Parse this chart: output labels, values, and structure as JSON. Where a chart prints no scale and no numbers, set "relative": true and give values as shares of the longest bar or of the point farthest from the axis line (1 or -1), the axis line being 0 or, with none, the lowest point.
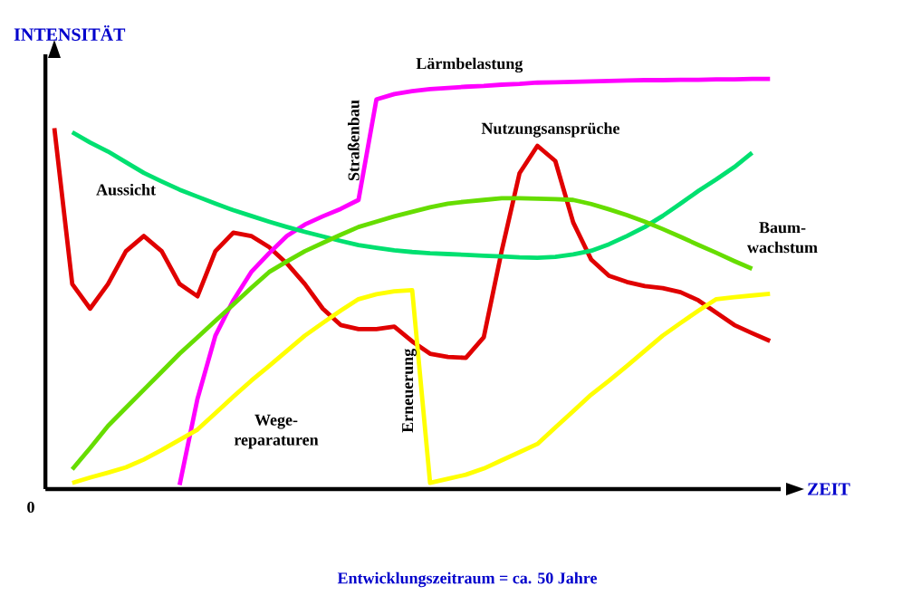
{
  "chart_data": {
    "type": "line",
    "relative": true,
    "xlabel": "ZEIT",
    "ylabel": "INTENSITÄT",
    "annotations": [
      "0",
      "Straßenbau",
      "Erneuerung",
      "Entwicklungszeitraum = ca. 50 Jahre"
    ],
    "categories": [
      null,
      null,
      null,
      null,
      null,
      null,
      null,
      null,
      null,
      null,
      null,
      null,
      null,
      null,
      null,
      null,
      null,
      null,
      null,
      null,
      null,
      null,
      null,
      null,
      null,
      null,
      null,
      null,
      null,
      null,
      null,
      null,
      null,
      null,
      null,
      null,
      null,
      null,
      null,
      null,
      null
    ],
    "series": [
      {
        "name": "Nutzungsansprüche",
        "color": "#e00000",
        "values": [
          0.88,
          0.5,
          0.44,
          0.5,
          0.58,
          0.617,
          0.58,
          0.5,
          0.47,
          0.58,
          0.625,
          0.617,
          0.59,
          0.55,
          0.5,
          0.44,
          0.4,
          0.39,
          0.39,
          0.396,
          0.36,
          0.33,
          0.322,
          0.32,
          0.37,
          0.58,
          0.77,
          0.837,
          0.8,
          0.65,
          0.56,
          0.52,
          0.505,
          0.495,
          0.49,
          0.48,
          0.46,
          0.43,
          0.4,
          0.38,
          0.361
        ]
      },
      {
        "name": "Lärmbelastung",
        "color": "#ff00ff",
        "values": [
          null,
          null,
          null,
          null,
          null,
          null,
          null,
          0.01,
          0.22,
          0.374,
          0.46,
          0.529,
          0.575,
          0.617,
          0.645,
          0.665,
          0.683,
          0.705,
          0.95,
          0.963,
          0.97,
          0.975,
          0.978,
          0.981,
          0.983,
          0.986,
          0.988,
          0.991,
          0.992,
          0.993,
          0.994,
          0.995,
          0.996,
          0.997,
          0.997,
          0.998,
          0.998,
          0.999,
          0.999,
          1,
          1
        ]
      },
      {
        "name": "Aussicht",
        "color": "#00e070",
        "values": [
          null,
          0.87,
          0.845,
          0.823,
          0.797,
          0.771,
          0.75,
          0.73,
          0.713,
          0.696,
          0.68,
          0.666,
          0.652,
          0.639,
          0.627,
          0.616,
          0.605,
          0.595,
          0.588,
          0.582,
          0.578,
          0.575,
          0.573,
          0.571,
          0.569,
          0.567,
          0.565,
          0.564,
          0.566,
          0.572,
          0.581,
          0.597,
          0.617,
          0.639,
          0.666,
          0.696,
          0.727,
          0.755,
          0.785,
          0.82,
          null
        ]
      },
      {
        "name": "Baum- wachstum",
        "color": "#66dd00",
        "values": [
          null,
          0.048,
          0.1,
          0.154,
          0.198,
          0.242,
          0.286,
          0.33,
          0.37,
          0.41,
          0.45,
          0.49,
          0.529,
          0.555,
          0.58,
          0.6,
          0.62,
          0.639,
          0.652,
          0.665,
          0.676,
          0.687,
          0.696,
          0.701,
          0.705,
          0.709,
          0.709,
          0.708,
          0.707,
          0.705,
          0.695,
          0.682,
          0.668,
          0.652,
          0.634,
          0.615,
          0.595,
          0.576,
          0.556,
          0.537,
          null
        ]
      },
      {
        "name": "Wege- reparaturen",
        "color": "#ffff00",
        "values": [
          null,
          0.015,
          0.028,
          0.04,
          0.053,
          0.072,
          0.095,
          0.12,
          0.145,
          0.185,
          0.225,
          0.264,
          0.3,
          0.337,
          0.374,
          0.405,
          0.435,
          0.463,
          0.475,
          0.482,
          0.485,
          0.015,
          0.025,
          0.035,
          0.05,
          0.07,
          0.09,
          0.11,
          0.15,
          0.19,
          0.23,
          0.264,
          0.3,
          0.337,
          0.374,
          0.405,
          0.435,
          0.463,
          0.468,
          0.472,
          0.476
        ]
      }
    ]
  }
}
